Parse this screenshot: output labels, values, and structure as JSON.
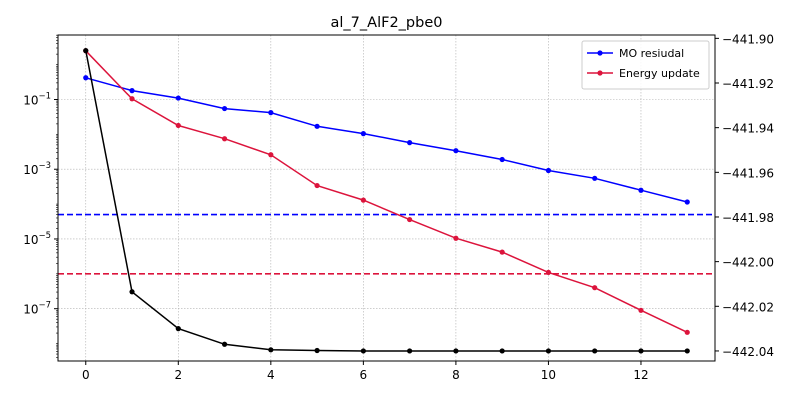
{
  "chart_data": {
    "type": "line",
    "title": "al_7_AlF2_pbe0",
    "xlabel": "",
    "ylabel": "",
    "xlim": [
      -0.6,
      13.6
    ],
    "x_ticks": [
      0,
      2,
      4,
      6,
      8,
      10,
      12
    ],
    "left_axis": {
      "scale": "log",
      "lim_log10": [
        -8.5,
        0.85
      ],
      "ticks": [
        {
          "exp": -1,
          "base": "10",
          "sup": "−1"
        },
        {
          "exp": -3,
          "base": "10",
          "sup": "−3"
        },
        {
          "exp": -5,
          "base": "10",
          "sup": "−5"
        },
        {
          "exp": -7,
          "base": "10",
          "sup": "−7"
        }
      ]
    },
    "right_axis": {
      "scale": "linear",
      "lim": [
        -442.0445,
        -441.8985
      ],
      "ticks": [
        -441.9,
        -441.92,
        -441.94,
        -441.96,
        -441.98,
        -442.0,
        -442.02,
        -442.04
      ],
      "tick_labels": [
        "−441.90",
        "−441.92",
        "−441.94",
        "−441.96",
        "−441.98",
        "−442.00",
        "−442.02",
        "−442.04"
      ]
    },
    "grid": true,
    "legend_position": "top-right",
    "series": [
      {
        "name": "MO resiudal",
        "axis": "left",
        "color": "#0000ff",
        "x": [
          0,
          1,
          2,
          3,
          4,
          5,
          6,
          7,
          8,
          9,
          10,
          11,
          12,
          13
        ],
        "y": [
          0.42,
          0.18,
          0.11,
          0.055,
          0.042,
          0.017,
          0.0105,
          0.0058,
          0.0034,
          0.0019,
          0.00092,
          0.00055,
          0.00025,
          0.000115
        ]
      },
      {
        "name": "Energy update",
        "axis": "left",
        "color": "#dc143c",
        "x": [
          0,
          1,
          2,
          3,
          4,
          5,
          6,
          7,
          8,
          9,
          10,
          11,
          12,
          13
        ],
        "y": [
          2.5,
          0.105,
          0.018,
          0.0075,
          0.0026,
          0.00034,
          0.00013,
          3.6e-05,
          1.05e-05,
          4.2e-06,
          1.1e-06,
          4e-07,
          9e-08,
          2.1e-08
        ]
      },
      {
        "axis": "right",
        "color": "#000000",
        "x": [
          0,
          1,
          2,
          3,
          4,
          5,
          6,
          7,
          8,
          9,
          10,
          11,
          12,
          13
        ],
        "y": [
          -441.9055,
          -442.0135,
          -442.03,
          -442.037,
          -442.0395,
          -442.0398,
          -442.04,
          -442.04,
          -442.04,
          -442.04,
          -442.04,
          -442.04,
          -442.04,
          -442.04
        ]
      }
    ],
    "thresholds": [
      {
        "axis": "left",
        "value": 5e-05,
        "color": "#0000ff",
        "style": "dashed"
      },
      {
        "axis": "left",
        "value": 1e-06,
        "color": "#dc143c",
        "style": "dashed"
      }
    ]
  }
}
